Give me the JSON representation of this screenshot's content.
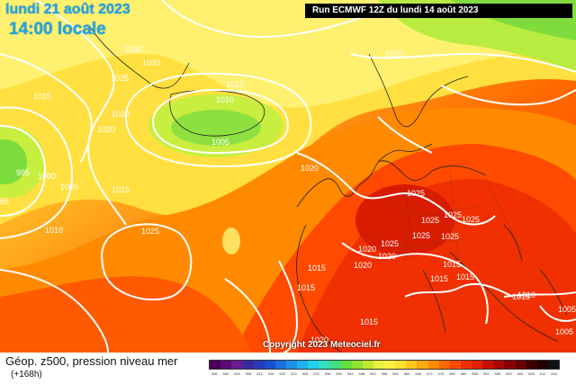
{
  "header": {
    "date": "lundi 21 août 2023",
    "local_time": "14:00 locale",
    "run": "Run ECMWF 12Z du lundi 14 août 2023"
  },
  "copyright": "Copyright 2023 Meteociel.fr",
  "footer": {
    "title": "Géop. z500, pression niveau mer",
    "subtitle": "(+168h)"
  },
  "colors": {
    "low_green": "#7cdc3c",
    "mid_yellow": "#ffe040",
    "orange": "#ff9a00",
    "red": "#ff3a00",
    "deep_red": "#d81c00"
  },
  "isobars": [
    "1030",
    "1030",
    "1025",
    "1015",
    "1020",
    "1020",
    "1015",
    "1010",
    "1005",
    "1020",
    "1005",
    "1000",
    "995",
    "95",
    "1010",
    "1015",
    "1025",
    "1025",
    "1020",
    "1020",
    "1015",
    "1015",
    "1015",
    "1015",
    "1025",
    "1025",
    "1025",
    "1025",
    "1025",
    "1025",
    "1020",
    "1020",
    "1015",
    "1015",
    "1015",
    "1010",
    "1005",
    "1005",
    "1020"
  ],
  "scale": {
    "colors": [
      "#4a0058",
      "#5c0a78",
      "#6a1a8e",
      "#3a2aa0",
      "#2a3ab8",
      "#1a50d0",
      "#1a70e0",
      "#2090e8",
      "#20b0f0",
      "#20d0f0",
      "#30e0c0",
      "#40e080",
      "#60e040",
      "#90e030",
      "#c0e830",
      "#e8f040",
      "#fff040",
      "#ffe030",
      "#ffc820",
      "#ffa810",
      "#ff8a00",
      "#ff6a00",
      "#ff4a00",
      "#f03000",
      "#e02000",
      "#c81000",
      "#a80800",
      "#880000",
      "#680000",
      "#400000",
      "#200000",
      "#101010"
    ],
    "ticks": [
      "496",
      "500",
      "504",
      "508",
      "512",
      "516",
      "520",
      "524",
      "528",
      "532",
      "536",
      "540",
      "544",
      "548",
      "552",
      "556",
      "560",
      "564",
      "568",
      "572",
      "576",
      "580",
      "584",
      "588",
      "592",
      "596",
      "600",
      "604",
      "608",
      "612",
      "616"
    ]
  }
}
